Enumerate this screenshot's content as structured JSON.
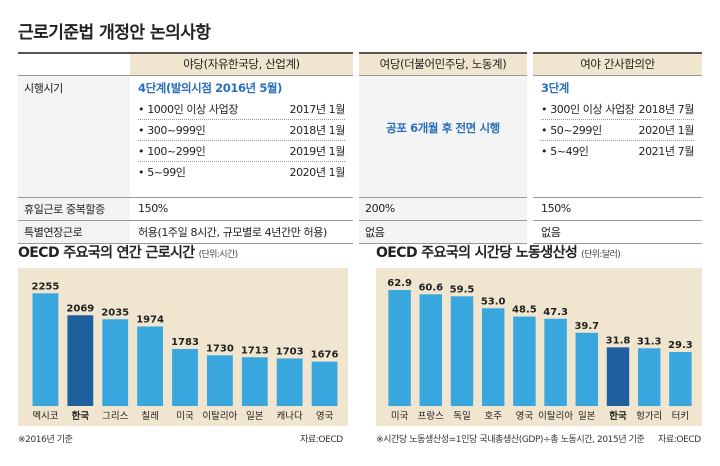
{
  "title": "근로기준법 개정안 논의사항",
  "table": {
    "headers": [
      "야당(자유한국당, 산업계)",
      "여당(더불어민주당, 노동계)",
      "여야 간사합의안"
    ],
    "rows": {
      "start": {
        "label": "시행시기",
        "col1": {
          "subtitle": "4단계(발의시점 2016년 5월)",
          "items": [
            {
              "text": "1000인 이상 사업장",
              "date": "2017년 1월"
            },
            {
              "text": "300~999인",
              "date": "2018년 1월"
            },
            {
              "text": "100~299인",
              "date": "2019년 1월"
            },
            {
              "text": "5~99인",
              "date": "2020년 1월"
            }
          ]
        },
        "col2": "공포 6개월 후 전면 시행",
        "col3": {
          "subtitle": "3단계",
          "items": [
            {
              "text": "300인 이상 사업장",
              "date": "2018년 7월"
            },
            {
              "text": "50~299인",
              "date": "2020년 1월"
            },
            {
              "text": "5~49인",
              "date": "2021년 7월"
            }
          ]
        }
      },
      "holiday": {
        "label": "휴일근로 중복할증",
        "col1": "150%",
        "col2": "200%",
        "col3": "150%"
      },
      "extension": {
        "label": "특별연장근로",
        "col1": "허용(1주일 8시간, 규모별로 4년간만 허용)",
        "col2": "없음",
        "col3": "없음"
      }
    }
  },
  "charts_text": {
    "hours_title": "OECD 주요국의 연간 근로시간",
    "hours_unit": "(단위:시간)",
    "hours_note": "※2016년 기준",
    "hours_source": "자료:OECD",
    "prod_title": "OECD 주요국의 시간당 노동생산성",
    "prod_unit": "(단위:달러)",
    "prod_note": "※시간당 노동생산성=1인당 국내총생산(GDP)÷총 노동시간, 2015년 기준",
    "prod_source": "자료:OECD"
  },
  "colors": {
    "bar": "#3aa6de",
    "highlight": "#1f5f9e",
    "panel": "#f0e6cf"
  },
  "chart_data": [
    {
      "type": "bar",
      "title": "OECD 주요국의 연간 근로시간",
      "unit": "단위:시간",
      "categories": [
        "멕시코",
        "한국",
        "그리스",
        "칠레",
        "미국",
        "이탈리아",
        "일본",
        "캐나다",
        "영국"
      ],
      "values": [
        2255,
        2069,
        2035,
        1974,
        1783,
        1730,
        1713,
        1703,
        1676
      ],
      "labels": [
        "2255",
        "2069",
        "2035",
        "1974",
        "1783",
        "1730",
        "1713",
        "1703",
        "1676"
      ],
      "highlight": "한국",
      "ylim": [
        1300,
        2300
      ]
    },
    {
      "type": "bar",
      "title": "OECD 주요국의 시간당 노동생산성",
      "unit": "단위:달러",
      "categories": [
        "미국",
        "프랑스",
        "독일",
        "호주",
        "영국",
        "이탈리아",
        "일본",
        "한국",
        "헝가리",
        "터키"
      ],
      "values": [
        62.9,
        60.6,
        59.5,
        53.0,
        48.5,
        47.3,
        39.7,
        31.8,
        31.3,
        29.3
      ],
      "labels": [
        "62.9",
        "60.6",
        "59.5",
        "53.0",
        "48.5",
        "47.3",
        "39.7",
        "31.8",
        "31.3",
        "29.3"
      ],
      "highlight": "한국",
      "ylim": [
        0,
        64
      ]
    }
  ]
}
